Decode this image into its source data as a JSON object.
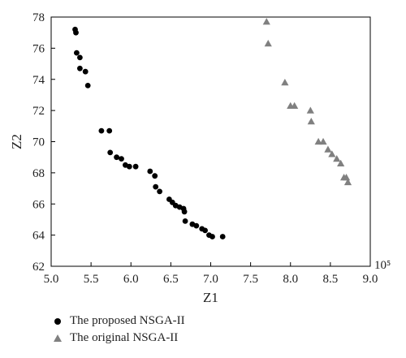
{
  "chart_data": {
    "type": "scatter",
    "title": "",
    "xlabel": "Z1",
    "ylabel": "Z2",
    "x_scale_note": "10⁵",
    "xlim": [
      5.0,
      9.0
    ],
    "ylim": [
      62,
      78
    ],
    "x_ticks": [
      "5.0",
      "5.5",
      "6.0",
      "6.5",
      "7.0",
      "7.5",
      "8.0",
      "8.5",
      "9.0"
    ],
    "y_ticks": [
      "62",
      "64",
      "66",
      "68",
      "70",
      "72",
      "74",
      "76",
      "78"
    ],
    "grid": false,
    "legend_position": "bottom-left",
    "series": [
      {
        "name": "The proposed NSGA-II",
        "marker": "circle",
        "color": "#000000",
        "points": [
          [
            5.3,
            77.2
          ],
          [
            5.31,
            77.0
          ],
          [
            5.32,
            75.7
          ],
          [
            5.36,
            75.4
          ],
          [
            5.36,
            74.7
          ],
          [
            5.43,
            74.5
          ],
          [
            5.46,
            73.6
          ],
          [
            5.63,
            70.7
          ],
          [
            5.73,
            70.7
          ],
          [
            5.74,
            69.3
          ],
          [
            5.82,
            69.0
          ],
          [
            5.88,
            68.9
          ],
          [
            5.93,
            68.5
          ],
          [
            5.98,
            68.4
          ],
          [
            6.06,
            68.4
          ],
          [
            6.24,
            68.1
          ],
          [
            6.3,
            67.8
          ],
          [
            6.31,
            67.1
          ],
          [
            6.36,
            66.8
          ],
          [
            6.48,
            66.3
          ],
          [
            6.52,
            66.1
          ],
          [
            6.56,
            65.9
          ],
          [
            6.61,
            65.8
          ],
          [
            6.66,
            65.7
          ],
          [
            6.67,
            65.5
          ],
          [
            6.68,
            64.9
          ],
          [
            6.77,
            64.7
          ],
          [
            6.82,
            64.6
          ],
          [
            6.89,
            64.4
          ],
          [
            6.93,
            64.3
          ],
          [
            6.98,
            64.0
          ],
          [
            7.02,
            63.9
          ],
          [
            7.15,
            63.9
          ]
        ]
      },
      {
        "name": "The original NSGA-II",
        "marker": "triangle",
        "color": "#808080",
        "points": [
          [
            7.7,
            77.7
          ],
          [
            7.72,
            76.3
          ],
          [
            7.93,
            73.8
          ],
          [
            8.0,
            72.3
          ],
          [
            8.05,
            72.3
          ],
          [
            8.25,
            72.0
          ],
          [
            8.26,
            71.3
          ],
          [
            8.35,
            70.0
          ],
          [
            8.41,
            70.0
          ],
          [
            8.47,
            69.5
          ],
          [
            8.52,
            69.2
          ],
          [
            8.58,
            68.9
          ],
          [
            8.63,
            68.6
          ],
          [
            8.67,
            67.7
          ],
          [
            8.7,
            67.7
          ],
          [
            8.72,
            67.4
          ]
        ]
      }
    ]
  }
}
